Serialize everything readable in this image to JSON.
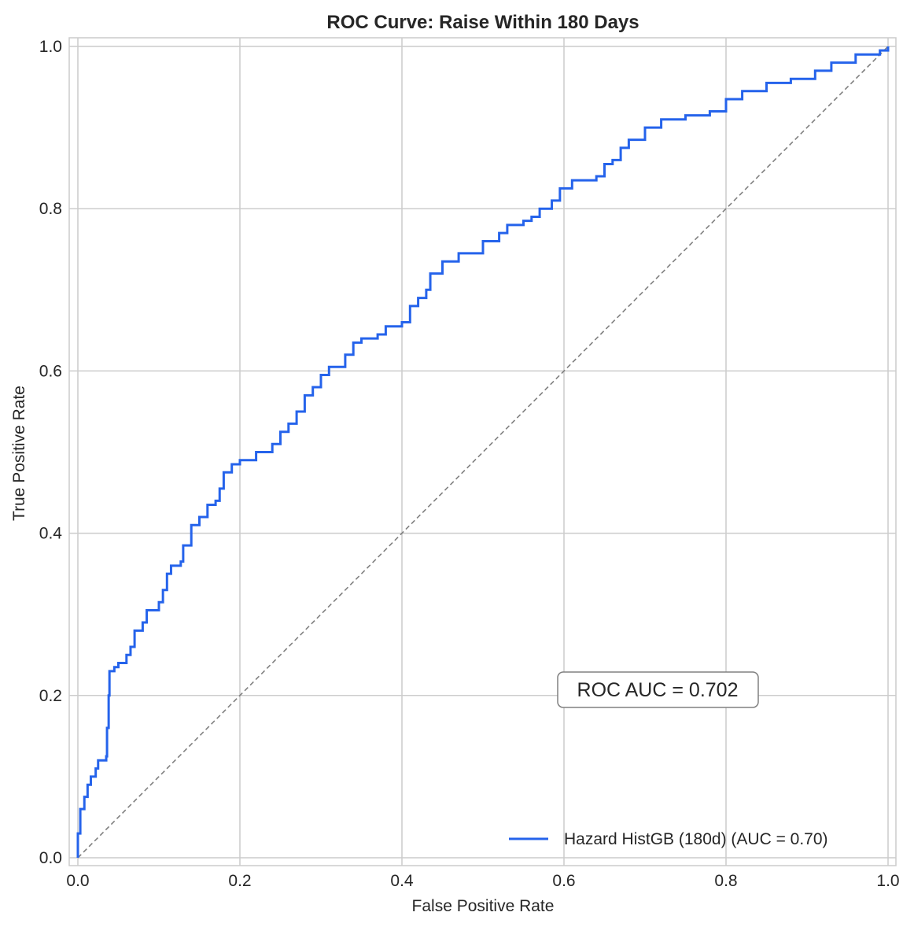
{
  "chart_data": {
    "type": "line",
    "title": "ROC Curve: Raise Within 180 Days",
    "xlabel": "False Positive Rate",
    "ylabel": "True Positive Rate",
    "xlim": [
      -0.01,
      1.01
    ],
    "ylim": [
      -0.01,
      1.01
    ],
    "xticks": [
      "0.0",
      "0.2",
      "0.4",
      "0.6",
      "0.8",
      "1.0"
    ],
    "yticks": [
      "0.0",
      "0.2",
      "0.4",
      "0.6",
      "0.8",
      "1.0"
    ],
    "grid": true,
    "legend_position": "lower right",
    "annotation": "ROC AUC = 0.702",
    "colors": {
      "curve": "#2563eb",
      "diagonal": "#808080",
      "grid": "#cccccc"
    },
    "series": [
      {
        "name": "Hazard HistGB (180d) (AUC = 0.70)",
        "style": "step",
        "x": [
          0,
          0,
          0.003,
          0.008,
          0.012,
          0.016,
          0.022,
          0.025,
          0.035,
          0.036,
          0.038,
          0.039,
          0.045,
          0.05,
          0.06,
          0.065,
          0.07,
          0.08,
          0.085,
          0.1,
          0.105,
          0.11,
          0.115,
          0.127,
          0.13,
          0.14,
          0.15,
          0.16,
          0.17,
          0.175,
          0.18,
          0.19,
          0.2,
          0.22,
          0.24,
          0.25,
          0.26,
          0.27,
          0.28,
          0.29,
          0.3,
          0.31,
          0.33,
          0.34,
          0.35,
          0.37,
          0.38,
          0.4,
          0.41,
          0.42,
          0.43,
          0.435,
          0.45,
          0.47,
          0.5,
          0.52,
          0.53,
          0.55,
          0.56,
          0.57,
          0.585,
          0.595,
          0.61,
          0.64,
          0.65,
          0.66,
          0.67,
          0.68,
          0.7,
          0.72,
          0.75,
          0.78,
          0.8,
          0.82,
          0.85,
          0.88,
          0.91,
          0.93,
          0.96,
          0.99,
          1.0
        ],
        "y": [
          0,
          0.03,
          0.06,
          0.075,
          0.09,
          0.1,
          0.11,
          0.12,
          0.125,
          0.16,
          0.2,
          0.23,
          0.235,
          0.24,
          0.25,
          0.26,
          0.28,
          0.29,
          0.305,
          0.315,
          0.33,
          0.35,
          0.36,
          0.365,
          0.385,
          0.41,
          0.42,
          0.435,
          0.44,
          0.455,
          0.475,
          0.485,
          0.49,
          0.5,
          0.51,
          0.525,
          0.535,
          0.55,
          0.57,
          0.58,
          0.595,
          0.605,
          0.62,
          0.635,
          0.64,
          0.645,
          0.655,
          0.66,
          0.68,
          0.69,
          0.7,
          0.72,
          0.735,
          0.745,
          0.76,
          0.77,
          0.78,
          0.785,
          0.79,
          0.8,
          0.81,
          0.825,
          0.835,
          0.84,
          0.855,
          0.86,
          0.875,
          0.885,
          0.9,
          0.91,
          0.915,
          0.92,
          0.935,
          0.945,
          0.955,
          0.96,
          0.97,
          0.98,
          0.99,
          0.995,
          1.0
        ]
      },
      {
        "name": "chance-diagonal",
        "style": "dashed",
        "x": [
          0,
          1
        ],
        "y": [
          0,
          1
        ]
      }
    ]
  }
}
